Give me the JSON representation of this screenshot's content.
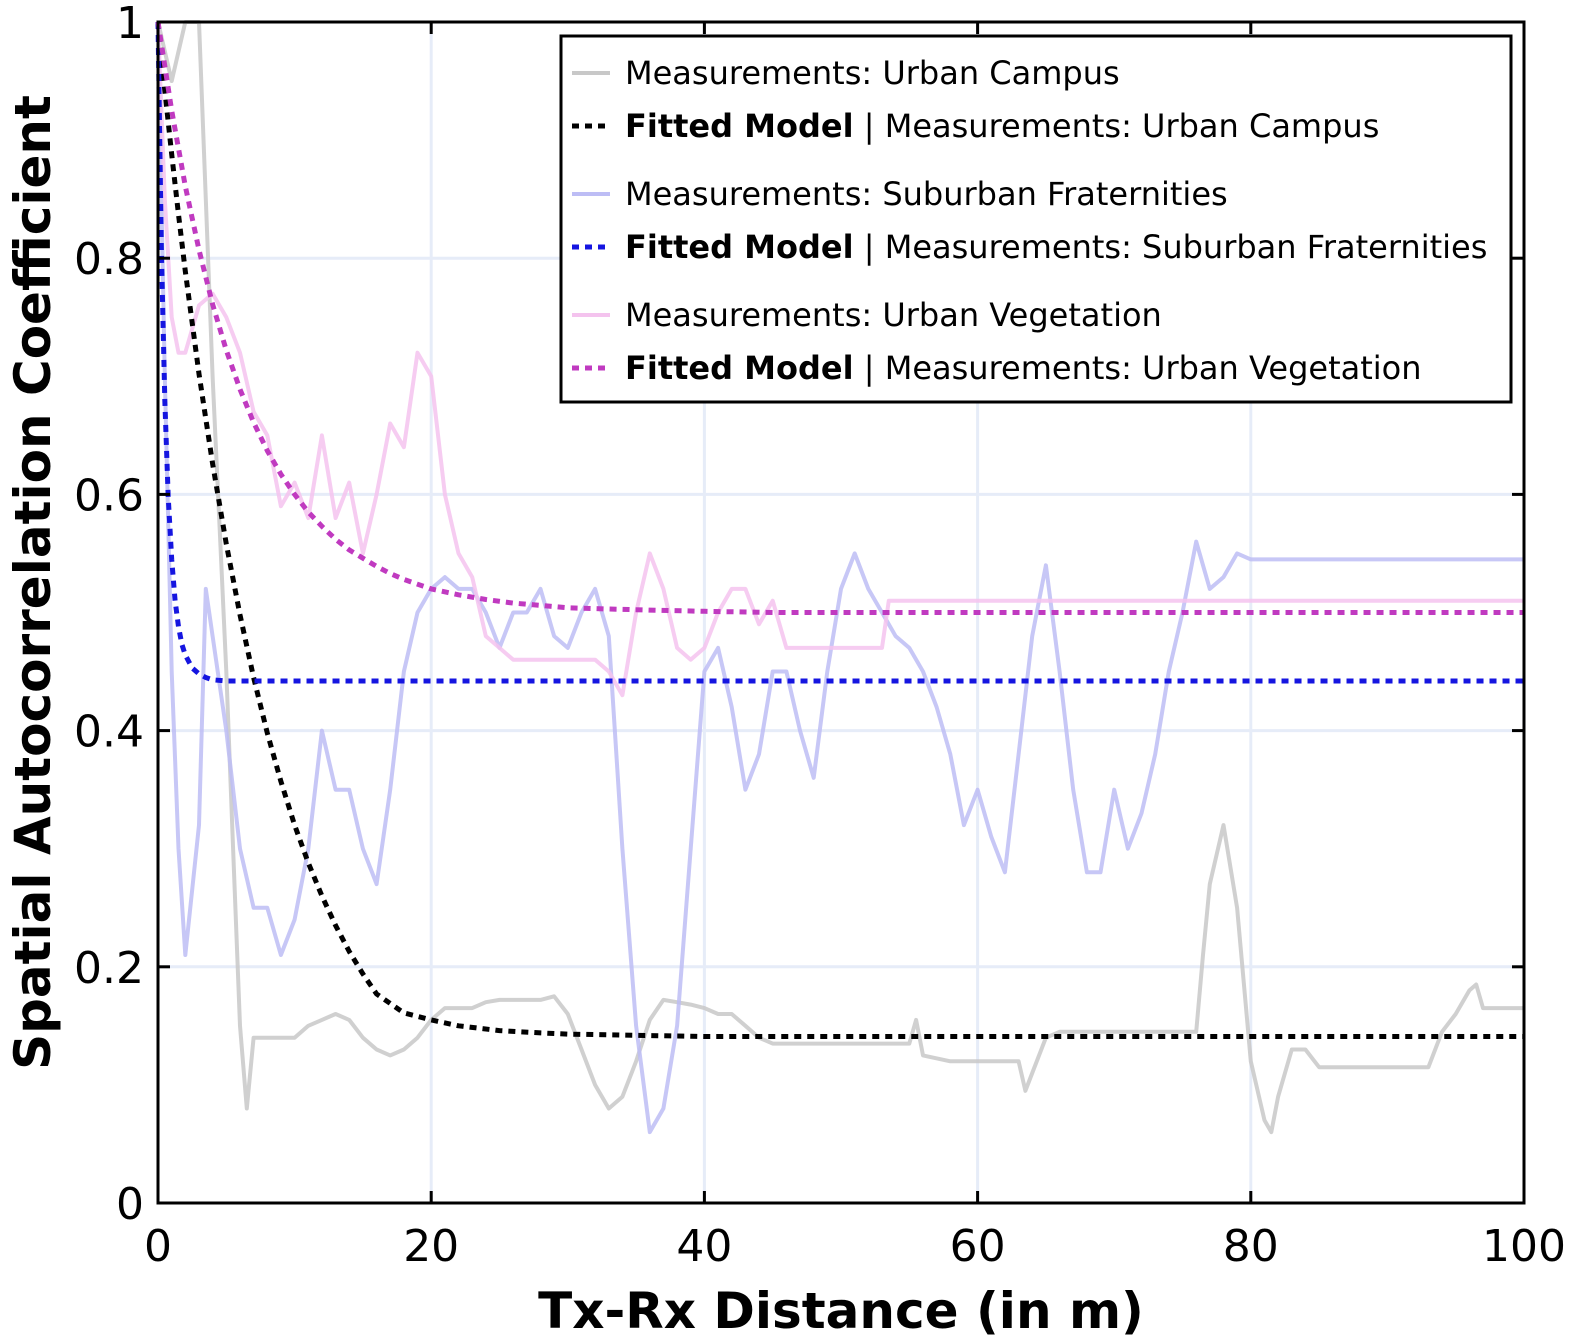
{
  "chart_data": {
    "type": "line",
    "title": "",
    "xlabel": "Tx-Rx Distance (in m)",
    "ylabel": "Spatial Autocorrelation Coefficient",
    "xlim": [
      0,
      100
    ],
    "ylim": [
      0,
      1
    ],
    "x_ticks": [
      "0",
      "20",
      "40",
      "60",
      "80",
      "100"
    ],
    "y_ticks": [
      "0",
      "0.2",
      "0.4",
      "0.6",
      "0.8",
      "1"
    ],
    "grid": true,
    "legend_position": "top-right",
    "series": [
      {
        "name": "Measurements: Urban Campus",
        "kind": "measured",
        "color": "#c8c8c8",
        "x": [
          0,
          1,
          2,
          3,
          3.5,
          4,
          5,
          5.5,
          6,
          6.5,
          7,
          8,
          9,
          10,
          11,
          12,
          13,
          14,
          15,
          16,
          17,
          18,
          19,
          20,
          21,
          22,
          23,
          24,
          25,
          26,
          27,
          28,
          29,
          30,
          31,
          32,
          33,
          34,
          35,
          36,
          37,
          38,
          39,
          40,
          41,
          42,
          43,
          44,
          45,
          50,
          55,
          55.5,
          56,
          58,
          60,
          62,
          63,
          63.5,
          64,
          65,
          66,
          70,
          76,
          76.5,
          77,
          78,
          79,
          80,
          81,
          81.5,
          82,
          83,
          84,
          85,
          90,
          93,
          94,
          95,
          96,
          96.5,
          97,
          100
        ],
        "y": [
          1.0,
          0.95,
          1.0,
          1.0,
          0.85,
          0.7,
          0.45,
          0.3,
          0.15,
          0.08,
          0.14,
          0.14,
          0.14,
          0.14,
          0.15,
          0.155,
          0.16,
          0.155,
          0.14,
          0.13,
          0.125,
          0.13,
          0.14,
          0.155,
          0.165,
          0.165,
          0.165,
          0.17,
          0.172,
          0.172,
          0.172,
          0.172,
          0.175,
          0.16,
          0.13,
          0.1,
          0.08,
          0.09,
          0.12,
          0.155,
          0.172,
          0.17,
          0.168,
          0.165,
          0.16,
          0.16,
          0.15,
          0.14,
          0.135,
          0.135,
          0.135,
          0.155,
          0.125,
          0.12,
          0.12,
          0.12,
          0.12,
          0.095,
          0.11,
          0.14,
          0.145,
          0.145,
          0.145,
          0.21,
          0.27,
          0.32,
          0.25,
          0.12,
          0.07,
          0.06,
          0.09,
          0.13,
          0.13,
          0.115,
          0.115,
          0.115,
          0.145,
          0.16,
          0.18,
          0.185,
          0.165,
          0.165
        ]
      },
      {
        "name": "Fitted Model | Measurements: Urban Campus",
        "kind": "fitted",
        "color": "#000000",
        "x": [
          0,
          0.5,
          1,
          1.5,
          2,
          3,
          4,
          5,
          6,
          7,
          8,
          9,
          10,
          11,
          12,
          13,
          14,
          15,
          16,
          18,
          20,
          22,
          25,
          28,
          30,
          35,
          40,
          50,
          60,
          70,
          80,
          90,
          100
        ],
        "y": [
          1.0,
          0.942,
          0.888,
          0.837,
          0.789,
          0.702,
          0.626,
          0.558,
          0.498,
          0.445,
          0.398,
          0.357,
          0.32,
          0.288,
          0.26,
          0.235,
          0.213,
          0.194,
          0.177,
          0.161,
          0.155,
          0.15,
          0.146,
          0.144,
          0.143,
          0.142,
          0.141,
          0.141,
          0.141,
          0.141,
          0.141,
          0.141,
          0.141
        ]
      },
      {
        "name": "Measurements: Suburban Fraternities",
        "kind": "measured",
        "color": "#bdbdf5",
        "x": [
          0,
          0.5,
          1,
          1.5,
          2,
          3,
          3.5,
          4,
          5,
          6,
          7,
          8,
          9,
          10,
          11,
          12,
          13,
          14,
          15,
          16,
          17,
          18,
          19,
          20,
          21,
          22,
          23,
          24,
          25,
          26,
          27,
          28,
          29,
          30,
          31,
          32,
          33,
          34,
          35,
          36,
          37,
          38,
          39,
          40,
          41,
          42,
          43,
          44,
          45,
          46,
          47,
          48,
          49,
          50,
          51,
          52,
          53,
          54,
          55,
          56,
          57,
          58,
          59,
          60,
          61,
          62,
          63,
          64,
          65,
          66,
          67,
          68,
          69,
          70,
          71,
          72,
          73,
          74,
          75,
          76,
          77,
          78,
          79,
          80,
          90,
          100
        ],
        "y": [
          1.0,
          0.7,
          0.45,
          0.3,
          0.21,
          0.32,
          0.52,
          0.48,
          0.4,
          0.3,
          0.25,
          0.25,
          0.21,
          0.24,
          0.3,
          0.4,
          0.35,
          0.35,
          0.3,
          0.27,
          0.35,
          0.45,
          0.5,
          0.52,
          0.53,
          0.52,
          0.52,
          0.5,
          0.47,
          0.5,
          0.5,
          0.52,
          0.48,
          0.47,
          0.5,
          0.52,
          0.48,
          0.3,
          0.15,
          0.06,
          0.08,
          0.15,
          0.3,
          0.45,
          0.47,
          0.42,
          0.35,
          0.38,
          0.45,
          0.45,
          0.4,
          0.36,
          0.45,
          0.52,
          0.55,
          0.52,
          0.5,
          0.48,
          0.47,
          0.45,
          0.42,
          0.38,
          0.32,
          0.35,
          0.31,
          0.28,
          0.38,
          0.48,
          0.54,
          0.45,
          0.35,
          0.28,
          0.28,
          0.35,
          0.3,
          0.33,
          0.38,
          0.45,
          0.5,
          0.56,
          0.52,
          0.53,
          0.55,
          0.545,
          0.545,
          0.545
        ]
      },
      {
        "name": "Fitted Model | Measurements: Suburban Fraternities",
        "kind": "fitted",
        "color": "#1515e0",
        "x": [
          0,
          0.25,
          0.5,
          0.75,
          1,
          1.25,
          1.5,
          1.75,
          2,
          2.5,
          3,
          3.5,
          4,
          5,
          10,
          20,
          40,
          60,
          80,
          100
        ],
        "y": [
          1.0,
          0.806,
          0.68,
          0.598,
          0.545,
          0.51,
          0.488,
          0.473,
          0.464,
          0.453,
          0.448,
          0.445,
          0.443,
          0.442,
          0.442,
          0.442,
          0.442,
          0.442,
          0.442,
          0.442
        ]
      },
      {
        "name": "Measurements: Urban Vegetation",
        "kind": "measured",
        "color": "#f4c3ee",
        "x": [
          0,
          0.5,
          1,
          1.5,
          2,
          3,
          4,
          5,
          6,
          7,
          8,
          9,
          10,
          11,
          12,
          13,
          14,
          15,
          16,
          17,
          18,
          19,
          20,
          21,
          22,
          23,
          24,
          25,
          26,
          27,
          28,
          29,
          30,
          31,
          32,
          33,
          34,
          35,
          36,
          37,
          38,
          39,
          40,
          41,
          42,
          43,
          44,
          45,
          46,
          47,
          48,
          49,
          50,
          51,
          52,
          53,
          53.5,
          54,
          60,
          70,
          80,
          90,
          100
        ],
        "y": [
          1.0,
          0.85,
          0.75,
          0.72,
          0.72,
          0.76,
          0.77,
          0.75,
          0.72,
          0.67,
          0.65,
          0.59,
          0.61,
          0.58,
          0.65,
          0.58,
          0.61,
          0.55,
          0.6,
          0.66,
          0.64,
          0.72,
          0.7,
          0.6,
          0.55,
          0.53,
          0.48,
          0.47,
          0.46,
          0.46,
          0.46,
          0.46,
          0.46,
          0.46,
          0.46,
          0.45,
          0.43,
          0.5,
          0.55,
          0.52,
          0.47,
          0.46,
          0.47,
          0.5,
          0.52,
          0.52,
          0.49,
          0.51,
          0.47,
          0.47,
          0.47,
          0.47,
          0.47,
          0.47,
          0.47,
          0.47,
          0.51,
          0.51,
          0.51,
          0.51,
          0.51,
          0.51,
          0.51
        ]
      },
      {
        "name": "Fitted Model | Measurements: Urban Vegetation",
        "kind": "fitted",
        "color": "#c03ac0",
        "x": [
          0,
          1,
          2,
          3,
          4,
          5,
          6,
          7,
          8,
          9,
          10,
          11,
          12,
          13,
          14,
          15,
          16,
          17,
          18,
          19,
          20,
          22,
          24,
          26,
          28,
          30,
          33,
          36,
          40,
          45,
          50,
          60,
          70,
          80,
          90,
          100
        ],
        "y": [
          1.0,
          0.925,
          0.861,
          0.807,
          0.761,
          0.722,
          0.689,
          0.661,
          0.637,
          0.617,
          0.6,
          0.585,
          0.573,
          0.562,
          0.553,
          0.546,
          0.539,
          0.533,
          0.528,
          0.524,
          0.52,
          0.515,
          0.511,
          0.508,
          0.506,
          0.504,
          0.503,
          0.502,
          0.501,
          0.5,
          0.5,
          0.5,
          0.5,
          0.5,
          0.5,
          0.5
        ]
      }
    ],
    "legend": [
      {
        "prefix": "",
        "text": "Measurements: Urban Campus",
        "series": 0
      },
      {
        "prefix": "Fitted Model",
        "text": " | Measurements: Urban Campus",
        "series": 1
      },
      {
        "prefix": "",
        "text": "Measurements: Suburban Fraternities",
        "series": 2
      },
      {
        "prefix": "Fitted Model",
        "text": " | Measurements: Suburban Fraternities",
        "series": 3
      },
      {
        "prefix": "",
        "text": "Measurements: Urban Vegetation",
        "series": 4
      },
      {
        "prefix": "Fitted Model",
        "text": " | Measurements: Urban Vegetation",
        "series": 5
      }
    ]
  }
}
